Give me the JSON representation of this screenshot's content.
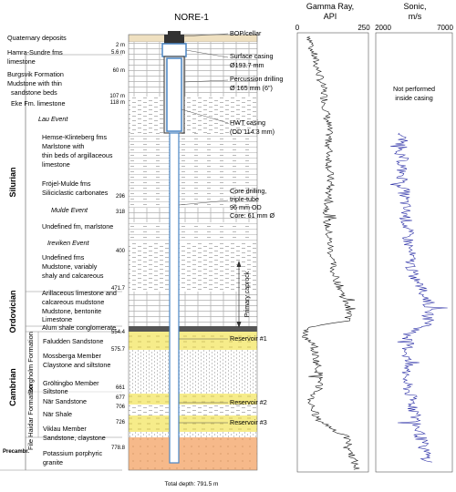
{
  "well": {
    "title": "NORE-1",
    "total_depth": "Total depth: 791.5 m"
  },
  "periods": [
    "Silurian",
    "Ordovician",
    "Cambrian",
    "Precambr."
  ],
  "formations": [
    "Borgholm Formation",
    "File Haidar Formation"
  ],
  "units": [
    "Quaternary deposits",
    "Hamra-Sundre fms",
    "limestone",
    "Burgsvik Formation",
    "Mudstone with thin",
    "sandstone beds",
    "Eke Fm. limestone",
    "Lau Event",
    "Hemse-Klinteberg fms",
    "Marlstone with",
    "thin beds of argillaceous",
    "limestone",
    "Fröjel-Mulde fms",
    "Siliciclastic carbonates",
    "Mulde Event",
    "Undefined fm, marlstone",
    "Ireviken Event",
    "Undefined fms",
    "Mudstone, variably",
    "shaly and calcareous",
    "Arillaceous limestone and",
    "calcareous mudstone",
    "Mudstone, bentonite",
    "Limestone",
    "Alum shale conglomerate",
    "Faludden Sandstone",
    "Mossberga Member",
    "Claystone and siltstone",
    "Gröltingbo Member",
    "Siltstone",
    "När Sandstone",
    "När Shale",
    "Viklau Member",
    "Sandstone, claystone",
    "Potassium porphyric",
    "granite"
  ],
  "depths": [
    "2 m",
    "5.6 m",
    "60 m",
    "107 m",
    "118 m",
    "296",
    "318",
    "400",
    "471.7",
    "554.4",
    "575.7",
    "661",
    "677",
    "706",
    "726",
    "778.8"
  ],
  "well_labels": [
    "BOP/cellar",
    "Surface casing",
    "Ø193.7 mm",
    "Percussion drilling",
    "Ø 165 mm (6\")",
    "HWT casing",
    "(OD 114.3 mm)",
    "Core drilling,",
    "triple-tube",
    "96 mm OD",
    "Core: 61 mm Ø",
    "Primary caprock",
    "Reservoir #1",
    "Reservoir #2",
    "Reservoir #3"
  ],
  "logs": {
    "gamma": {
      "title1": "Gamma Ray,",
      "title2": "API",
      "min": "0",
      "max": "250",
      "color": "#1a1a1a"
    },
    "sonic": {
      "title1": "Sonic,",
      "title2": "m/s",
      "min": "2000",
      "max": "7000",
      "color": "#2b2fa6",
      "note1": "Not performed",
      "note2": "inside casing"
    }
  },
  "colors": {
    "sandstone": "#f6ec8a",
    "granite": "#f6b98a",
    "quaternary": "#efe0c0",
    "casing": "#4a86c5"
  }
}
